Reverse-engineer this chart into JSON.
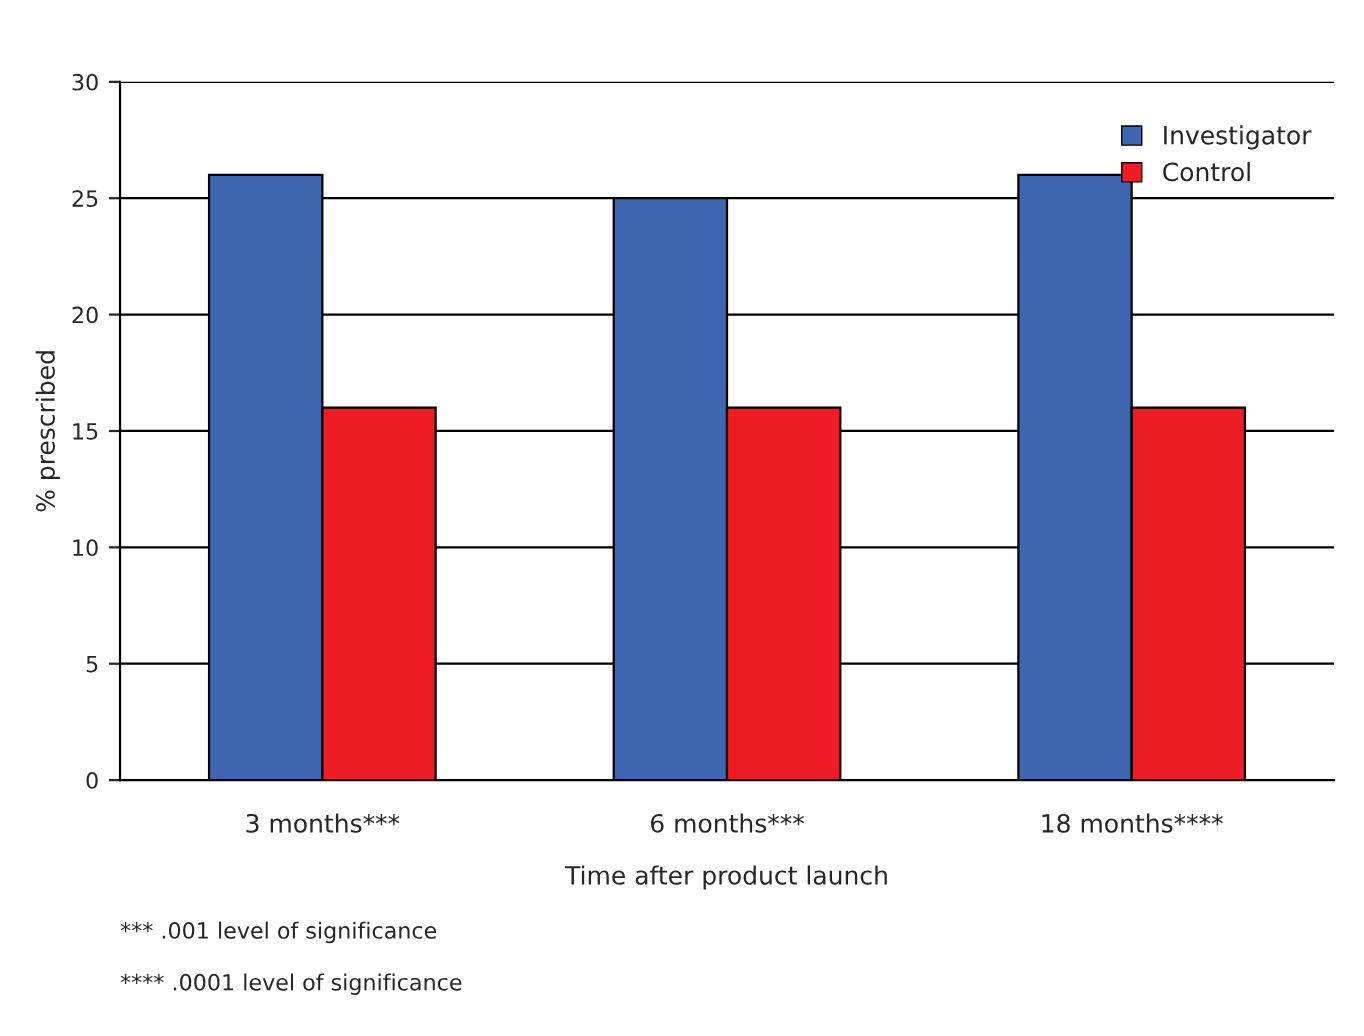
{
  "chart_data": {
    "type": "bar",
    "xlabel": "Time after product launch",
    "ylabel": "% prescribed",
    "categories": [
      "3 months***",
      "6 months***",
      "18 months****"
    ],
    "series": [
      {
        "name": "Investigator",
        "color": "#3f67b1",
        "values": [
          26,
          25,
          26
        ]
      },
      {
        "name": "Control",
        "color": "#ee1c25",
        "values": [
          16,
          16,
          16
        ]
      }
    ],
    "ylim": [
      0,
      30
    ],
    "yticks": [
      0,
      5,
      10,
      15,
      20,
      25,
      30
    ],
    "grid": "y",
    "legend": "top right",
    "annotations": [
      "*** .001 level of significance",
      "**** .0001 level of significance"
    ]
  }
}
